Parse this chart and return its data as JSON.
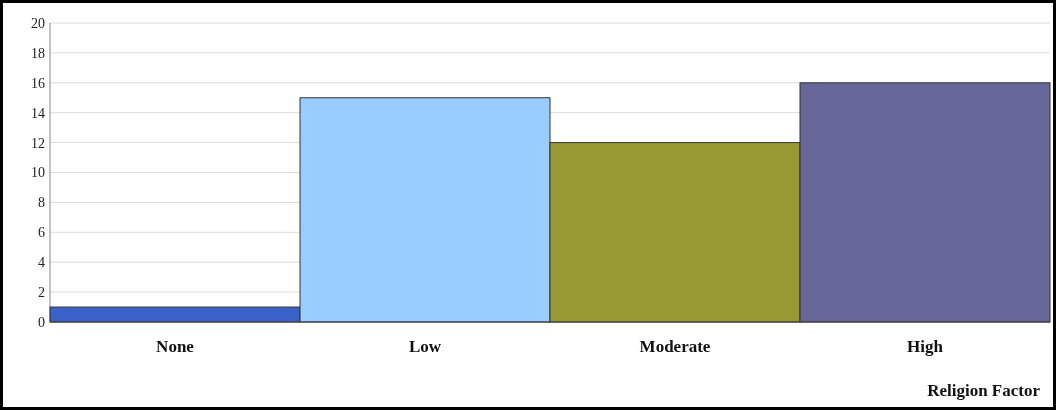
{
  "chart_data": {
    "type": "bar",
    "xlabel": "Religion Factor",
    "categories": [
      "None",
      "Low",
      "Moderate",
      "High"
    ],
    "values": [
      1,
      15,
      12,
      16
    ],
    "colors": [
      "#3a62c8",
      "#99ccff",
      "#999933",
      "#666699"
    ],
    "ylim": [
      0,
      20
    ],
    "yticks": [
      0,
      2,
      4,
      6,
      8,
      10,
      12,
      14,
      16,
      18,
      20
    ],
    "grid": "y"
  }
}
